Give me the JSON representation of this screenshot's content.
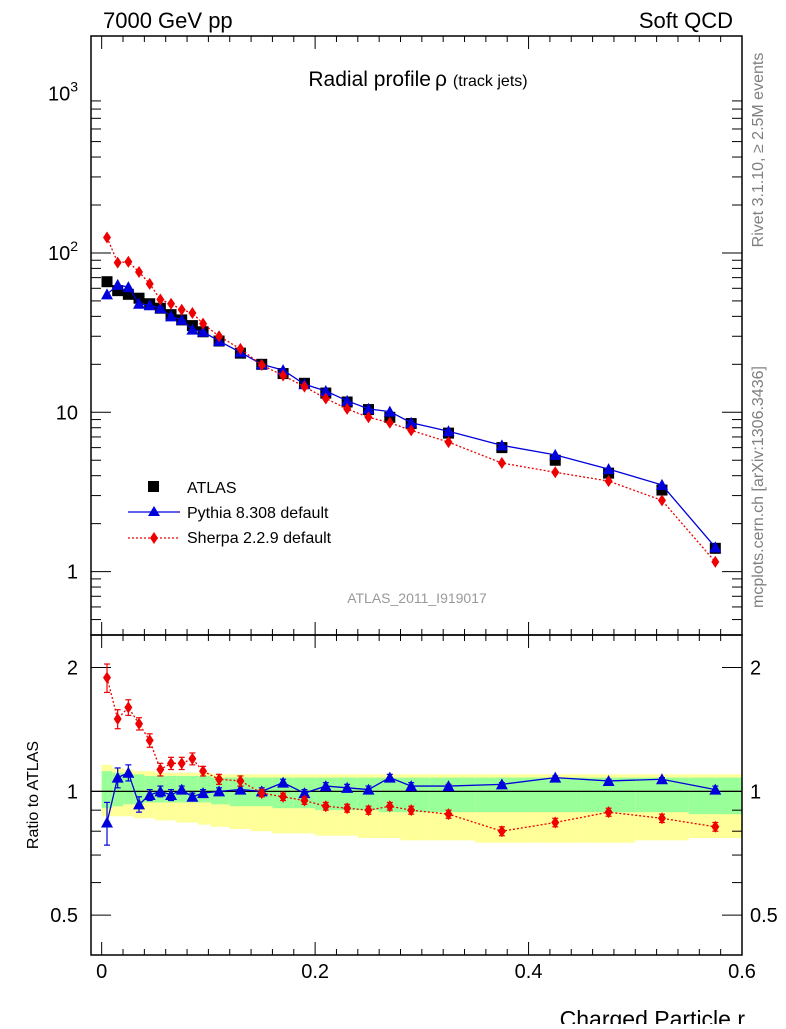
{
  "header": {
    "left": "7000 GeV pp",
    "right": "Soft QCD"
  },
  "side": {
    "rivet": "Rivet 3.1.10, ≥ 2.5M events",
    "mcplots": "mcplots.cern.ch [arXiv:1306.3436]"
  },
  "chart_data": {
    "type": "scatter",
    "title": "Radial profile",
    "title_symbol": "ρ",
    "title_suffix": "(track jets)",
    "analysis_label": "ATLAS_2011_I919017",
    "xlabel": "Charged Particle r",
    "ylabel_ratio": "Ratio to ATLAS",
    "xlim": [
      -0.01,
      0.6
    ],
    "ylim_main": [
      0.4,
      2300
    ],
    "ylim_ratio": [
      0.4,
      2.4
    ],
    "log_y_main": true,
    "log_y_ratio": true,
    "x_ticks": [
      "0",
      "0.2",
      "0.4",
      "0.6"
    ],
    "main_y_ticks": [
      {
        "value": 1,
        "label": "1",
        "sup": ""
      },
      {
        "value": 10,
        "label": "10",
        "sup": ""
      },
      {
        "value": 100,
        "label": "10",
        "sup": "2"
      },
      {
        "value": 1000,
        "label": "10",
        "sup": "3"
      }
    ],
    "ratio_y_ticks": [
      {
        "value": 0.5,
        "label": "0.5"
      },
      {
        "value": 1,
        "label": "1"
      },
      {
        "value": 2,
        "label": "2"
      }
    ],
    "legend_position": "left-middle",
    "x": [
      0.005,
      0.015,
      0.025,
      0.035,
      0.045,
      0.055,
      0.065,
      0.075,
      0.085,
      0.095,
      0.11,
      0.13,
      0.15,
      0.17,
      0.19,
      0.21,
      0.23,
      0.25,
      0.27,
      0.29,
      0.325,
      0.375,
      0.425,
      0.475,
      0.525,
      0.575
    ],
    "series": [
      {
        "name": "ATLAS",
        "color": "#000000",
        "marker": "square",
        "values": [
          66,
          58,
          55,
          52,
          48,
          45,
          41,
          38,
          35,
          32,
          28,
          23.5,
          20,
          17.5,
          15.2,
          13.2,
          11.6,
          10.4,
          9.3,
          8.5,
          7.4,
          6.0,
          5.0,
          4.15,
          3.25,
          1.4
        ],
        "ratio_band_inner": [
          [
            0.91,
            1.12
          ],
          [
            0.92,
            1.11
          ],
          [
            0.93,
            1.1
          ],
          [
            0.93,
            1.1
          ],
          [
            0.94,
            1.09
          ],
          [
            0.94,
            1.09
          ],
          [
            0.94,
            1.09
          ],
          [
            0.94,
            1.09
          ],
          [
            0.94,
            1.09
          ],
          [
            0.94,
            1.09
          ],
          [
            0.93,
            1.08
          ],
          [
            0.92,
            1.08
          ],
          [
            0.92,
            1.08
          ],
          [
            0.91,
            1.08
          ],
          [
            0.91,
            1.08
          ],
          [
            0.9,
            1.08
          ],
          [
            0.9,
            1.08
          ],
          [
            0.9,
            1.08
          ],
          [
            0.89,
            1.08
          ],
          [
            0.89,
            1.08
          ],
          [
            0.89,
            1.08
          ],
          [
            0.89,
            1.08
          ],
          [
            0.89,
            1.08
          ],
          [
            0.89,
            1.08
          ],
          [
            0.89,
            1.08
          ],
          [
            0.88,
            1.08
          ]
        ],
        "ratio_band_outer": [
          [
            0.87,
            1.16
          ],
          [
            0.87,
            1.14
          ],
          [
            0.87,
            1.13
          ],
          [
            0.86,
            1.12
          ],
          [
            0.86,
            1.12
          ],
          [
            0.85,
            1.11
          ],
          [
            0.85,
            1.11
          ],
          [
            0.84,
            1.11
          ],
          [
            0.84,
            1.11
          ],
          [
            0.83,
            1.11
          ],
          [
            0.82,
            1.1
          ],
          [
            0.81,
            1.1
          ],
          [
            0.8,
            1.1
          ],
          [
            0.79,
            1.1
          ],
          [
            0.79,
            1.1
          ],
          [
            0.78,
            1.1
          ],
          [
            0.78,
            1.1
          ],
          [
            0.77,
            1.1
          ],
          [
            0.77,
            1.1
          ],
          [
            0.76,
            1.1
          ],
          [
            0.76,
            1.1
          ],
          [
            0.75,
            1.1
          ],
          [
            0.75,
            1.1
          ],
          [
            0.75,
            1.1
          ],
          [
            0.76,
            1.1
          ],
          [
            0.77,
            1.1
          ]
        ]
      },
      {
        "name": "Pythia 8.308 default",
        "color": "#0000dd",
        "marker": "triangle",
        "line": "solid",
        "values": [
          55,
          63,
          61,
          48,
          47,
          45,
          40,
          38,
          33,
          32,
          28,
          23.8,
          20,
          18.4,
          15,
          13.6,
          11.8,
          10.5,
          10.1,
          8.6,
          7.6,
          6.2,
          5.4,
          4.4,
          3.5,
          1.42
        ],
        "ratio": [
          0.84,
          1.08,
          1.11,
          0.93,
          0.98,
          1.0,
          0.98,
          1.01,
          0.97,
          0.99,
          1.0,
          1.01,
          1.0,
          1.05,
          0.99,
          1.03,
          1.02,
          1.01,
          1.08,
          1.03,
          1.03,
          1.04,
          1.08,
          1.06,
          1.07,
          1.01
        ],
        "ratio_err": [
          0.1,
          0.06,
          0.05,
          0.04,
          0.03,
          0.03,
          0.03,
          0.02,
          0.02,
          0.02,
          0.02,
          0.02,
          0.02,
          0.02,
          0.02,
          0.02,
          0.02,
          0.02,
          0.02,
          0.02,
          0.01,
          0.01,
          0.01,
          0.01,
          0.01,
          0.02
        ]
      },
      {
        "name": "Sherpa 2.2.9 default",
        "color": "#ee0000",
        "marker": "diamond",
        "line": "dotted",
        "values": [
          125,
          87,
          88,
          76,
          64,
          51,
          48,
          44,
          42,
          36,
          30,
          25,
          19.8,
          17,
          14.5,
          12.2,
          10.5,
          9.3,
          8.6,
          7.7,
          6.5,
          4.8,
          4.2,
          3.7,
          2.8,
          1.15
        ],
        "ratio": [
          1.89,
          1.5,
          1.6,
          1.46,
          1.33,
          1.13,
          1.17,
          1.17,
          1.2,
          1.12,
          1.07,
          1.06,
          0.99,
          0.97,
          0.95,
          0.92,
          0.91,
          0.9,
          0.92,
          0.9,
          0.88,
          0.8,
          0.84,
          0.89,
          0.86,
          0.82
        ],
        "ratio_err": [
          0.15,
          0.08,
          0.07,
          0.05,
          0.05,
          0.04,
          0.04,
          0.04,
          0.04,
          0.03,
          0.03,
          0.03,
          0.02,
          0.02,
          0.02,
          0.02,
          0.02,
          0.02,
          0.02,
          0.02,
          0.02,
          0.02,
          0.02,
          0.02,
          0.02,
          0.02
        ]
      }
    ],
    "band_colors": {
      "inner": "#99ff99",
      "outer": "#ffff99"
    }
  }
}
